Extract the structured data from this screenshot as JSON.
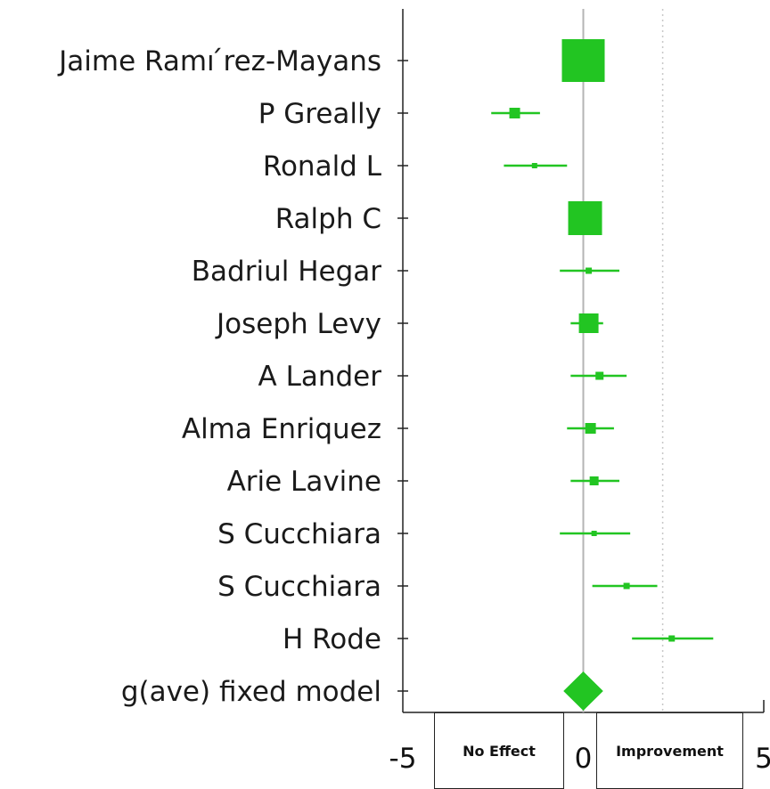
{
  "chart_data": {
    "type": "forest",
    "xlim": [
      -5,
      5
    ],
    "ticks": [
      {
        "value": -5,
        "label": "-5"
      },
      {
        "value": 0,
        "label": "0"
      },
      {
        "value": 5,
        "label": "5"
      }
    ],
    "reference_line_x": 0,
    "dotted_line_x": 2.2,
    "color": "#22c522",
    "studies": [
      {
        "name": "Jaime Ramı ́rez-Mayans",
        "effect": 0.0,
        "ci": [
          0.0,
          0.0
        ],
        "weight": 48
      },
      {
        "name": "P Greally",
        "effect": -1.9,
        "ci": [
          -2.55,
          -1.2
        ],
        "weight": 12
      },
      {
        "name": "Ronald L",
        "effect": -1.35,
        "ci": [
          -2.2,
          -0.45
        ],
        "weight": 6
      },
      {
        "name": "Ralph C",
        "effect": 0.05,
        "ci": [
          -0.4,
          0.5
        ],
        "weight": 38
      },
      {
        "name": "Badriul Hegar",
        "effect": 0.15,
        "ci": [
          -0.65,
          1.0
        ],
        "weight": 7
      },
      {
        "name": "Joseph Levy",
        "effect": 0.15,
        "ci": [
          -0.35,
          0.55
        ],
        "weight": 22
      },
      {
        "name": "A Lander",
        "effect": 0.45,
        "ci": [
          -0.35,
          1.2
        ],
        "weight": 9
      },
      {
        "name": "Alma Enriquez",
        "effect": 0.2,
        "ci": [
          -0.45,
          0.85
        ],
        "weight": 12
      },
      {
        "name": "Arie Lavine",
        "effect": 0.3,
        "ci": [
          -0.35,
          1.0
        ],
        "weight": 10
      },
      {
        "name": "S Cucchiara",
        "effect": 0.3,
        "ci": [
          -0.65,
          1.3
        ],
        "weight": 6
      },
      {
        "name": "S Cucchiara",
        "effect": 1.2,
        "ci": [
          0.25,
          2.05
        ],
        "weight": 7
      },
      {
        "name": "H Rode",
        "effect": 2.45,
        "ci": [
          1.35,
          3.6
        ],
        "weight": 7
      }
    ],
    "summary": {
      "name": "g(ave) fixed model",
      "effect": 0.0,
      "ci": [
        -0.55,
        0.55
      ]
    },
    "legend_boxes": {
      "left": "No Effect",
      "right": "Improvement"
    }
  }
}
